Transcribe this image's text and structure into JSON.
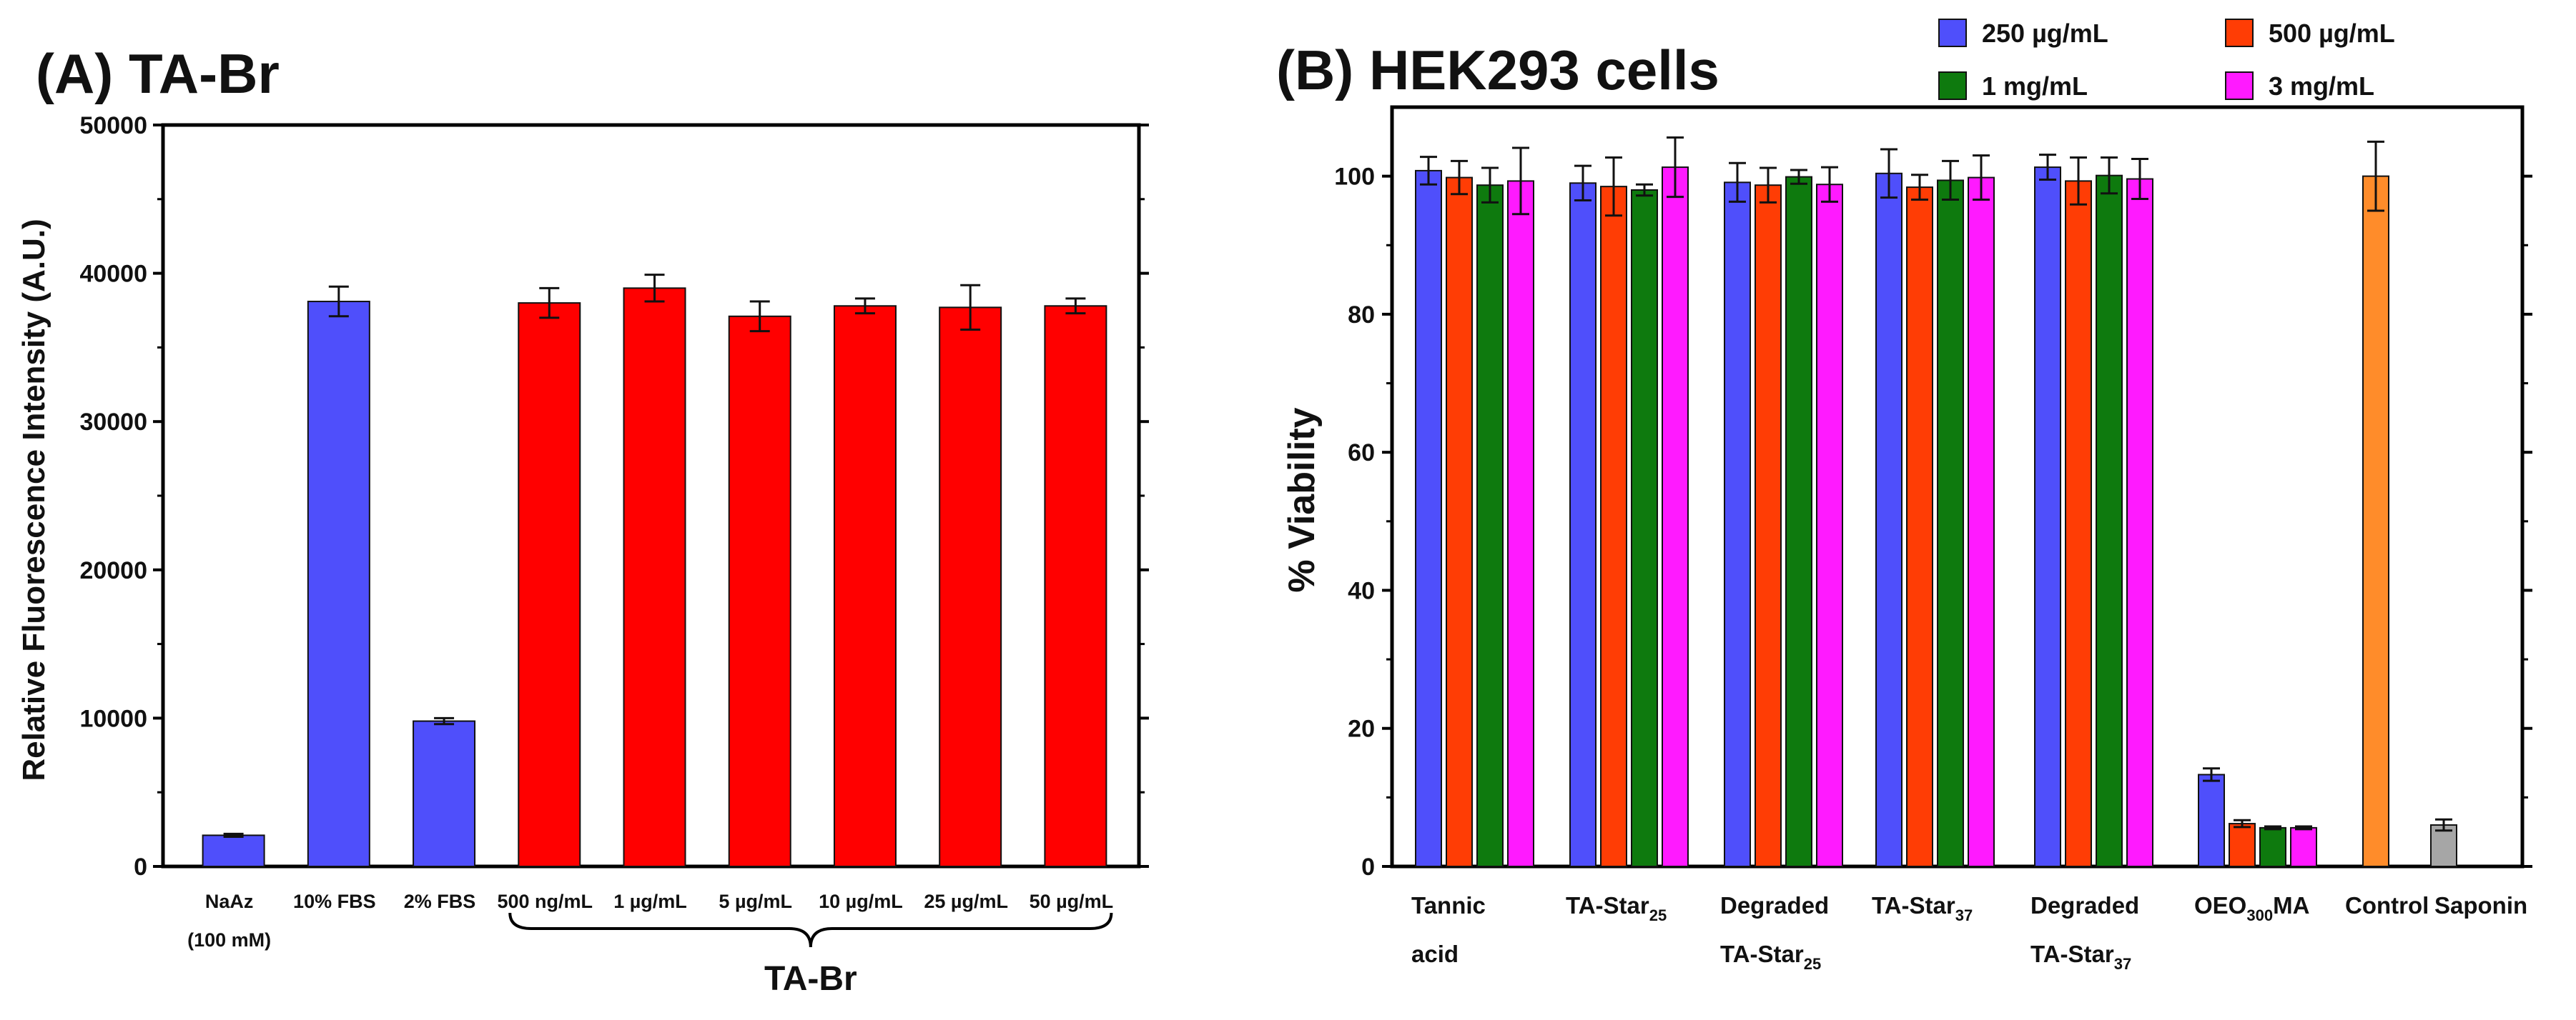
{
  "chart_data": [
    {
      "panel": "A",
      "type": "bar",
      "title": "(A) TA-Br",
      "xlabel": "",
      "ylabel": "Relative Fluorescence Intensity (A.U.)",
      "ylim": [
        0,
        50000
      ],
      "yticks": [
        0,
        10000,
        20000,
        30000,
        40000,
        50000
      ],
      "grid": false,
      "categories": [
        {
          "line1": "NaAz",
          "line2": "(100 mM)"
        },
        {
          "line1": "10% FBS",
          "line2": ""
        },
        {
          "line1": "2% FBS",
          "line2": ""
        },
        {
          "line1": "500 ng/mL",
          "line2": ""
        },
        {
          "line1": "1 µg/mL",
          "line2": ""
        },
        {
          "line1": "5 µg/mL",
          "line2": ""
        },
        {
          "line1": "10 µg/mL",
          "line2": ""
        },
        {
          "line1": "25 µg/mL",
          "line2": ""
        },
        {
          "line1": "50 µg/mL",
          "line2": ""
        }
      ],
      "values": [
        2100,
        38100,
        9800,
        38000,
        39000,
        37100,
        37800,
        37700,
        37800
      ],
      "errors": [
        100,
        1000,
        200,
        1000,
        900,
        1000,
        500,
        1500,
        500
      ],
      "bar_colors": [
        "#4f4ffb",
        "#4f4ffb",
        "#4f4ffb",
        "#ff0000",
        "#ff0000",
        "#ff0000",
        "#ff0000",
        "#ff0000",
        "#ff0000"
      ],
      "bracket": {
        "label": "TA-Br",
        "from_index": 3,
        "to_index": 8
      }
    },
    {
      "panel": "B",
      "type": "bar",
      "title": "(B) HEK293 cells",
      "xlabel": "",
      "ylabel": "% Viability",
      "ylim": [
        0,
        110
      ],
      "yticks": [
        0,
        20,
        40,
        60,
        80,
        100
      ],
      "grid": false,
      "legend_position": "top-right",
      "series": [
        {
          "name": "250 µg/mL",
          "color": "#4f4ffb",
          "values": [
            100.8,
            99.0,
            99.1,
            100.4,
            101.3,
            13.3
          ],
          "errors": [
            2.0,
            2.5,
            2.8,
            3.5,
            1.8,
            0.9
          ]
        },
        {
          "name": "500 µg/mL",
          "color": "#ff3d05",
          "values": [
            99.8,
            98.5,
            98.7,
            98.4,
            99.3,
            6.2
          ],
          "errors": [
            2.4,
            4.2,
            2.5,
            1.8,
            3.4,
            0.5
          ]
        },
        {
          "name": "1 mg/mL",
          "color": "#0e7a0e",
          "values": [
            98.7,
            98.0,
            99.9,
            99.4,
            100.1,
            5.6
          ],
          "errors": [
            2.5,
            0.8,
            1.0,
            2.8,
            2.6,
            0.2
          ]
        },
        {
          "name": "3 mg/mL",
          "color": "#ff1aff",
          "values": [
            99.3,
            101.3,
            98.8,
            99.8,
            99.6,
            5.6
          ],
          "errors": [
            4.8,
            4.3,
            2.5,
            3.2,
            2.9,
            0.2
          ]
        }
      ],
      "groups": [
        {
          "lines": [
            {
              "main": "Tannic",
              "sub": ""
            },
            {
              "main": "acid",
              "sub": ""
            }
          ]
        },
        {
          "lines": [
            {
              "main": "TA-Star",
              "sub": "25"
            }
          ]
        },
        {
          "lines": [
            {
              "main": "Degraded",
              "sub": ""
            },
            {
              "main": "TA-Star",
              "sub": "25"
            }
          ]
        },
        {
          "lines": [
            {
              "main": "TA-Star",
              "sub": "37"
            }
          ]
        },
        {
          "lines": [
            {
              "main": "Degraded",
              "sub": ""
            },
            {
              "main": "TA-Star",
              "sub": "37"
            }
          ]
        },
        {
          "lines": [
            {
              "main": "OEO",
              "sub": "300",
              "tail": "MA"
            }
          ]
        }
      ],
      "controls": [
        {
          "label": "Control",
          "value": 100.0,
          "error": 5.0,
          "color": "#ff8c2a"
        },
        {
          "label": "Saponin",
          "value": 6.0,
          "error": 0.8,
          "color": "#a6a6a6"
        }
      ]
    }
  ]
}
